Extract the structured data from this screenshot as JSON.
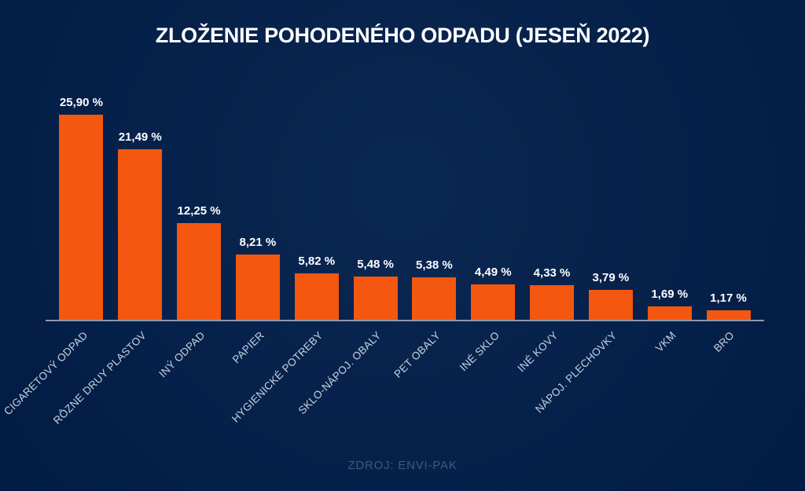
{
  "title": "ZLOŽENIE POHODENÉHO ODPADU (JESEŇ 2022)",
  "source": "ZDROJ: ENVI-PAK",
  "colors": {
    "background": "#041f48",
    "bar": "#f4570f",
    "axis_line": "#8e99af",
    "title_text": "#ffffff",
    "value_text": "#ffffff",
    "category_text": "#c9d2e0",
    "source_text": "#44577d"
  },
  "chart_data": {
    "type": "bar",
    "title": "ZLOŽENIE POHODENÉHO ODPADU (JESEŇ 2022)",
    "categories": [
      "CIGARETOVÝ ODPAD",
      "RÔZNE DRUY PLASTOV",
      "INÝ ODPAD",
      "PAPIER",
      "HYGIENICKÉ POTREBY",
      "SKLO-NÁPOJ. OBALY",
      "PET OBALY",
      "INÉ SKLO",
      "INÉ KOVY",
      "NÁPOJ. PLECHOVKY",
      "VKM",
      "BRO"
    ],
    "values": [
      25.9,
      21.49,
      12.25,
      8.21,
      5.82,
      5.48,
      5.38,
      4.49,
      4.33,
      3.79,
      1.69,
      1.17
    ],
    "value_labels": [
      "25,90 %",
      "21,49 %",
      "12,25 %",
      "8,21 %",
      "5,82 %",
      "5,48 %",
      "5,38 %",
      "4,49 %",
      "4,33 %",
      "3,79 %",
      "1,69 %",
      "1,17 %"
    ],
    "xlabel": "",
    "ylabel": "",
    "ylim": [
      0,
      26
    ],
    "grid": false,
    "legend": null,
    "bar_color": "#f4570f",
    "category_label_rotation_deg": -45,
    "source": "ZDROJ: ENVI-PAK"
  }
}
